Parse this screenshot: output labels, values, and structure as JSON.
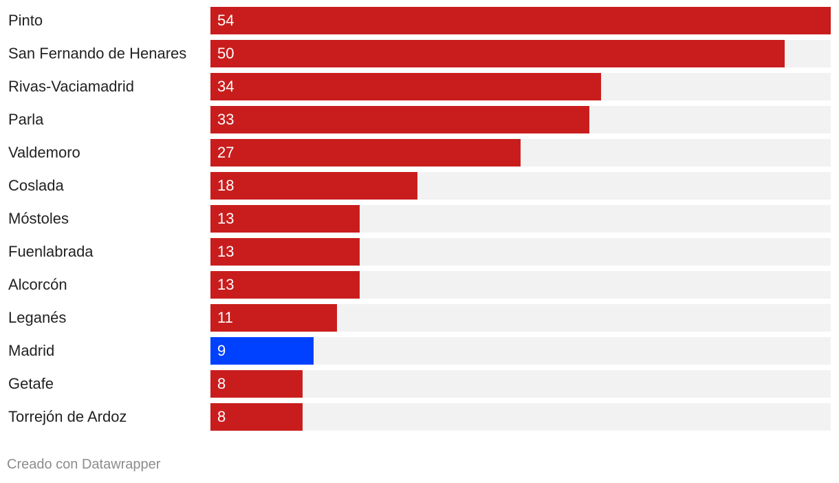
{
  "chart_data": {
    "type": "bar",
    "orientation": "horizontal",
    "categories": [
      "Pinto",
      "San Fernando de Henares",
      "Rivas-Vaciamadrid",
      "Parla",
      "Valdemoro",
      "Coslada",
      "Móstoles",
      "Fuenlabrada",
      "Alcorcón",
      "Leganés",
      "Madrid",
      "Getafe",
      "Torrejón de Ardoz"
    ],
    "values": [
      54,
      50,
      34,
      33,
      27,
      18,
      13,
      13,
      13,
      11,
      9,
      8,
      8
    ],
    "xlim": [
      0,
      54
    ],
    "grid": false,
    "value_labels": "inside-bar",
    "colors": {
      "default": "#c91d1d",
      "highlight": "#0040ff",
      "track": "#f2f2f2"
    },
    "highlight_category": "Madrid"
  },
  "footer": {
    "credit": "Creado con Datawrapper"
  }
}
